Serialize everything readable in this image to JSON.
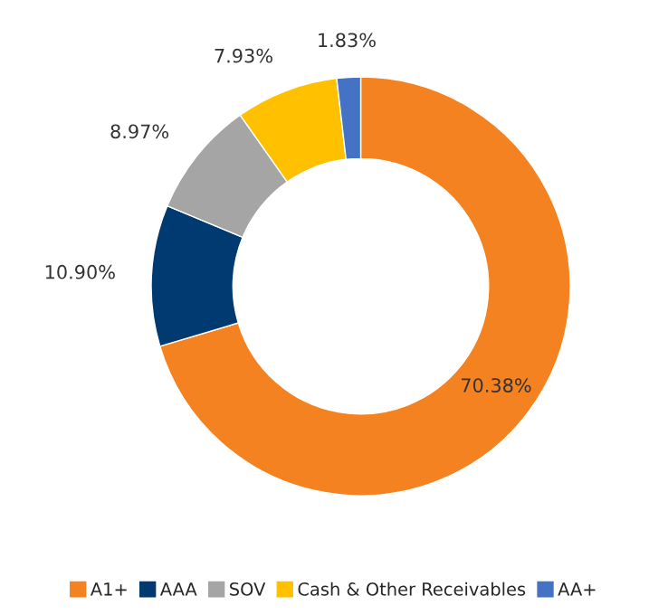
{
  "chart_data": {
    "type": "donut",
    "categories": [
      "A1+",
      "AAA",
      "SOV",
      "Cash & Other Receivables",
      "AA+"
    ],
    "values": [
      70.38,
      10.9,
      8.97,
      7.93,
      1.83
    ],
    "value_labels": [
      "70.38%",
      "10.90%",
      "8.97%",
      "7.93%",
      "1.83%"
    ],
    "colors": [
      "#f58220",
      "#003a70",
      "#a5a5a5",
      "#ffc000",
      "#4472c4"
    ],
    "legend": "bottom"
  }
}
